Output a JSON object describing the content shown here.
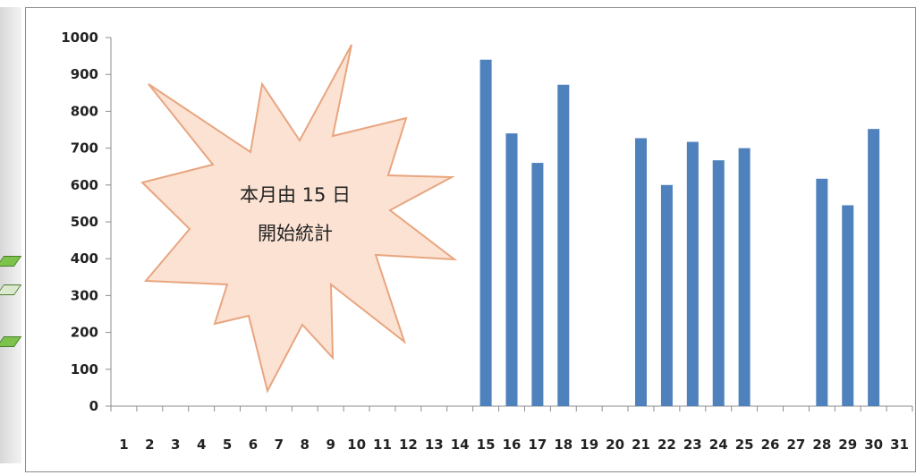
{
  "chart_data": {
    "type": "bar",
    "title": "",
    "xlabel": "",
    "ylabel": "",
    "ylim": [
      0,
      1000
    ],
    "yticks": [
      0,
      100,
      200,
      300,
      400,
      500,
      600,
      700,
      800,
      900,
      1000
    ],
    "categories": [
      "1",
      "2",
      "3",
      "4",
      "5",
      "6",
      "7",
      "8",
      "9",
      "10",
      "11",
      "12",
      "13",
      "14",
      "15",
      "16",
      "17",
      "18",
      "19",
      "20",
      "21",
      "22",
      "23",
      "24",
      "25",
      "26",
      "27",
      "28",
      "29",
      "30",
      "31"
    ],
    "values": [
      null,
      null,
      null,
      null,
      null,
      null,
      null,
      null,
      null,
      null,
      null,
      null,
      null,
      null,
      940,
      740,
      660,
      872,
      null,
      null,
      727,
      600,
      717,
      667,
      700,
      null,
      null,
      617,
      545,
      752,
      null
    ],
    "bar_color": "#4f81bd",
    "grid": false,
    "legend": "none"
  },
  "callout": {
    "line1": "本月由 15 日",
    "line2": "開始統計"
  },
  "colors": {
    "callout_fill": "#fbe2d3",
    "callout_stroke": "#e8a57f"
  }
}
